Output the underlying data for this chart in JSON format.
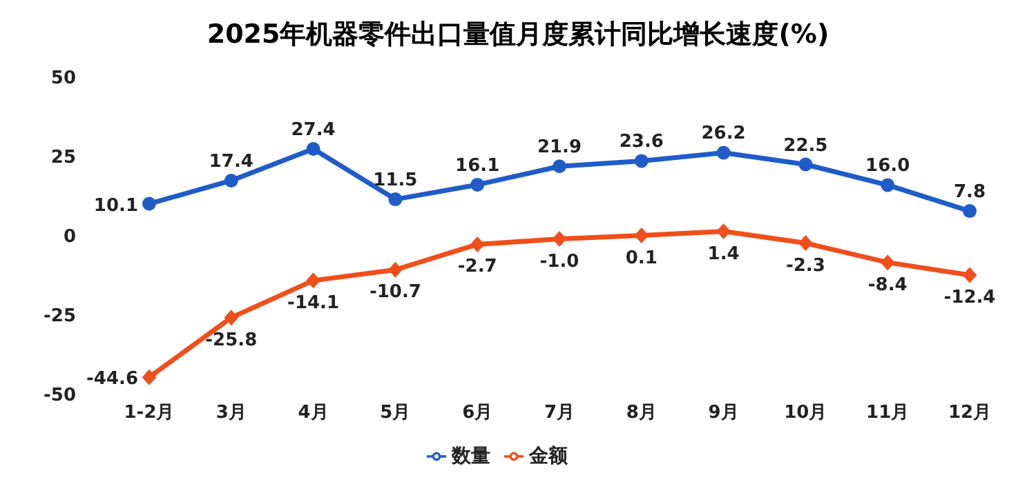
{
  "chart_data": {
    "type": "line",
    "title": "2025年机器零件出口量值月度累计同比增长速度(%)",
    "categories": [
      "1-2月",
      "3月",
      "4月",
      "5月",
      "6月",
      "7月",
      "8月",
      "9月",
      "10月",
      "11月",
      "12月"
    ],
    "series": [
      {
        "name": "数量",
        "color": "#1f5cc8",
        "marker": "circle",
        "values": [
          10.1,
          17.4,
          27.4,
          11.5,
          16.1,
          21.9,
          23.6,
          26.2,
          22.5,
          16.0,
          7.8
        ],
        "value_labels": [
          "10.1",
          "17.4",
          "27.4",
          "11.5",
          "16.1",
          "21.9",
          "23.6",
          "26.2",
          "22.5",
          "16.0",
          "7.8"
        ]
      },
      {
        "name": "金额",
        "color": "#f04e1a",
        "marker": "diamond",
        "values": [
          -44.6,
          -25.8,
          -14.1,
          -10.7,
          -2.7,
          -1.0,
          0.1,
          1.4,
          -2.3,
          -8.4,
          -12.4
        ],
        "value_labels": [
          "-44.6",
          "-25.8",
          "-14.1",
          "-10.7",
          "-2.7",
          "-1.0",
          "0.1",
          "1.4",
          "-2.3",
          "-8.4",
          "-12.4"
        ]
      }
    ],
    "ylim": [
      -50,
      50
    ],
    "yticks": [
      -50,
      -25,
      0,
      25,
      50
    ],
    "grid": false,
    "legend": "bottom",
    "line_style": "solid"
  }
}
